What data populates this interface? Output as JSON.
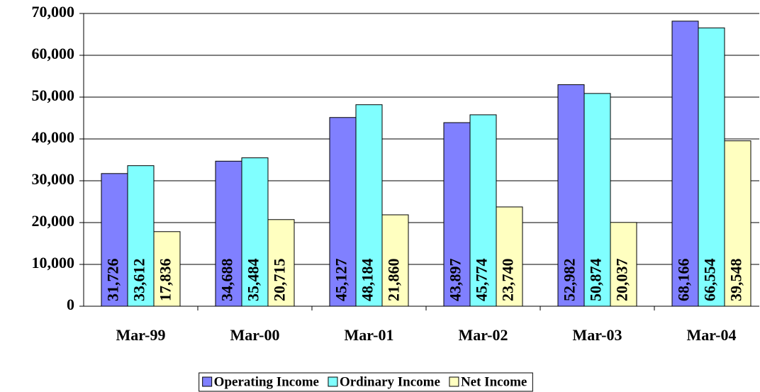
{
  "chart_data": {
    "type": "bar",
    "categories": [
      "Mar-99",
      "Mar-00",
      "Mar-01",
      "Mar-02",
      "Mar-03",
      "Mar-04"
    ],
    "series": [
      {
        "name": "Operating Income",
        "color": "#8080ff",
        "values": [
          31726,
          34688,
          45127,
          43897,
          52982,
          68166
        ],
        "value_labels": [
          "31,726",
          "34,688",
          "45,127",
          "43,897",
          "52,982",
          "68,166"
        ]
      },
      {
        "name": "Ordinary Income",
        "color": "#80ffff",
        "values": [
          33612,
          35484,
          48184,
          45774,
          50874,
          66554
        ],
        "value_labels": [
          "33,612",
          "35,484",
          "48,184",
          "45,774",
          "50,874",
          "66,554"
        ]
      },
      {
        "name": "Net Income",
        "color": "#ffffc0",
        "values": [
          17836,
          20715,
          21860,
          23740,
          20037,
          39548
        ],
        "value_labels": [
          "17,836",
          "20,715",
          "21,860",
          "23,740",
          "20,037",
          "39,548"
        ]
      }
    ],
    "ylim": [
      0,
      70000
    ],
    "yticks": [
      0,
      {
        "value": 10000,
        "label": "10,000"
      },
      {
        "value": 20000,
        "label": "20,000"
      },
      {
        "value": 30000,
        "label": "30,000"
      },
      {
        "value": 40000,
        "label": "40,000"
      },
      {
        "value": 50000,
        "label": "50,000"
      },
      {
        "value": 60000,
        "label": "60,000"
      },
      {
        "value": 70000,
        "label": "70,000"
      }
    ],
    "grid": true,
    "legend": "bottom"
  }
}
